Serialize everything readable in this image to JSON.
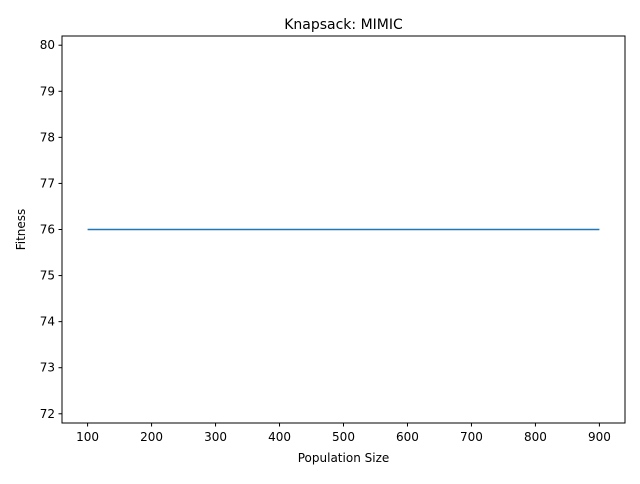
{
  "chart_data": {
    "type": "line",
    "title": "Knapsack: MIMIC",
    "xlabel": "Population Size",
    "ylabel": "Fitness",
    "x": [
      100,
      200,
      300,
      400,
      500,
      600,
      700,
      800,
      900
    ],
    "series": [
      {
        "values": [
          76,
          76,
          76,
          76,
          76,
          76,
          76,
          76,
          76
        ],
        "color": "#1f77b4"
      }
    ],
    "xlim": [
      60,
      940
    ],
    "ylim": [
      71.8,
      80.2
    ],
    "xticks": [
      100,
      200,
      300,
      400,
      500,
      600,
      700,
      800,
      900
    ],
    "yticks": [
      72,
      73,
      74,
      75,
      76,
      77,
      78,
      79,
      80
    ],
    "grid": false,
    "legend": "none"
  }
}
